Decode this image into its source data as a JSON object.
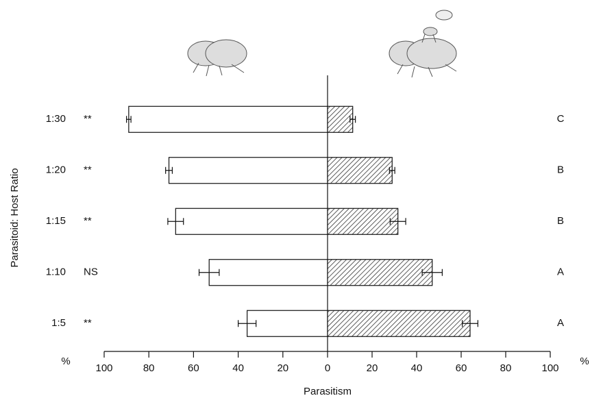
{
  "chart_data": {
    "type": "mirrored-bar",
    "xlabel": "Parasitism",
    "ylabel": "Parasitoid: Host Ratio",
    "x_unit": "%",
    "categories": [
      "1:30",
      "1:20",
      "1:15",
      "1:10",
      "1:5"
    ],
    "significance": [
      "**",
      "**",
      "**",
      "NS",
      "**"
    ],
    "groups": [
      "C",
      "B",
      "B",
      "A",
      "A"
    ],
    "left": {
      "values": [
        89,
        71,
        68,
        53,
        36
      ],
      "errors": [
        1,
        1.5,
        3.5,
        4.5,
        4
      ],
      "color": "#ffffff",
      "xlim": [
        100,
        0
      ],
      "xticks": [
        100,
        80,
        60,
        40,
        20
      ]
    },
    "right": {
      "values": [
        11.3,
        29,
        31.6,
        47,
        64
      ],
      "errors": [
        1.2,
        1.2,
        3.5,
        4.5,
        3.5
      ],
      "color": "#333333",
      "hatch": true,
      "xlim": [
        0,
        100
      ],
      "xticks": [
        0,
        20,
        40,
        60,
        80,
        100
      ]
    }
  }
}
